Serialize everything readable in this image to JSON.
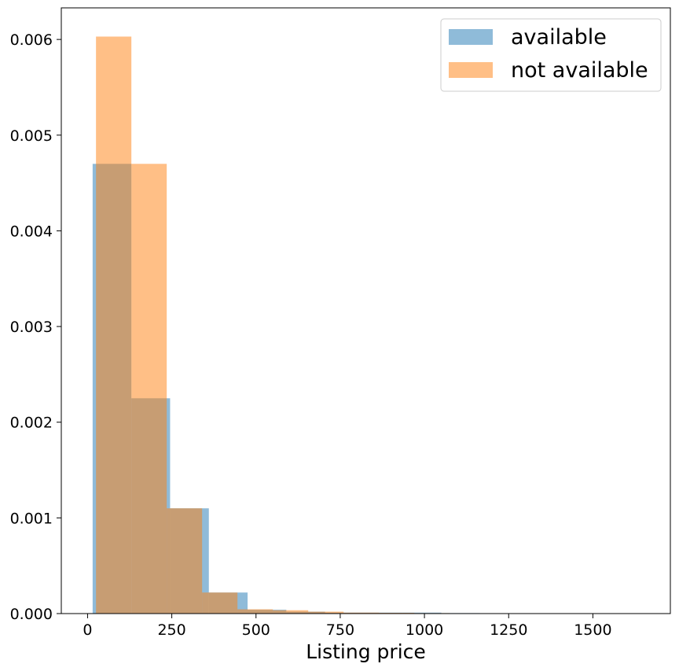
{
  "chart_data": {
    "type": "histogram",
    "xlabel": "Listing price",
    "ylabel": "",
    "title": "",
    "xlim": [
      -78,
      1730
    ],
    "ylim": [
      0,
      0.00633
    ],
    "xticks": [
      0,
      250,
      500,
      750,
      1000,
      1250,
      1500
    ],
    "xtick_labels": [
      "0",
      "250",
      "500",
      "750",
      "1000",
      "1250",
      "1500"
    ],
    "yticks": [
      0,
      0.001,
      0.002,
      0.003,
      0.004,
      0.005,
      0.006
    ],
    "ytick_labels": [
      "0.000",
      "0.001",
      "0.002",
      "0.003",
      "0.004",
      "0.005",
      "0.006"
    ],
    "grid": false,
    "legend_position": "top-right",
    "series": [
      {
        "name": "available",
        "color": "#1f77b4",
        "alpha": 0.5,
        "bin_edges": [
          15,
          130,
          245,
          360,
          475,
          590,
          705,
          820,
          935,
          1050,
          1165
        ],
        "values": [
          0.0047,
          0.00225,
          0.0011,
          0.00022,
          4e-05,
          2e-05,
          1e-05,
          1e-05,
          1e-05,
          5e-06
        ]
      },
      {
        "name": "not available",
        "color": "#ff7f0e",
        "alpha": 0.5,
        "bin_edges": [
          25,
          130,
          235,
          340,
          445,
          550,
          655,
          760,
          865,
          970,
          1075,
          1180,
          1285,
          1390,
          1495,
          1600,
          1705
        ],
        "values": [
          0.00603,
          0.0047,
          0.0011,
          0.00022,
          4.5e-05,
          3.5e-05,
          2e-05,
          1e-05,
          8e-06,
          5e-06,
          4e-06,
          3e-06,
          2e-06,
          2e-06,
          1e-06,
          1e-06
        ]
      }
    ]
  }
}
